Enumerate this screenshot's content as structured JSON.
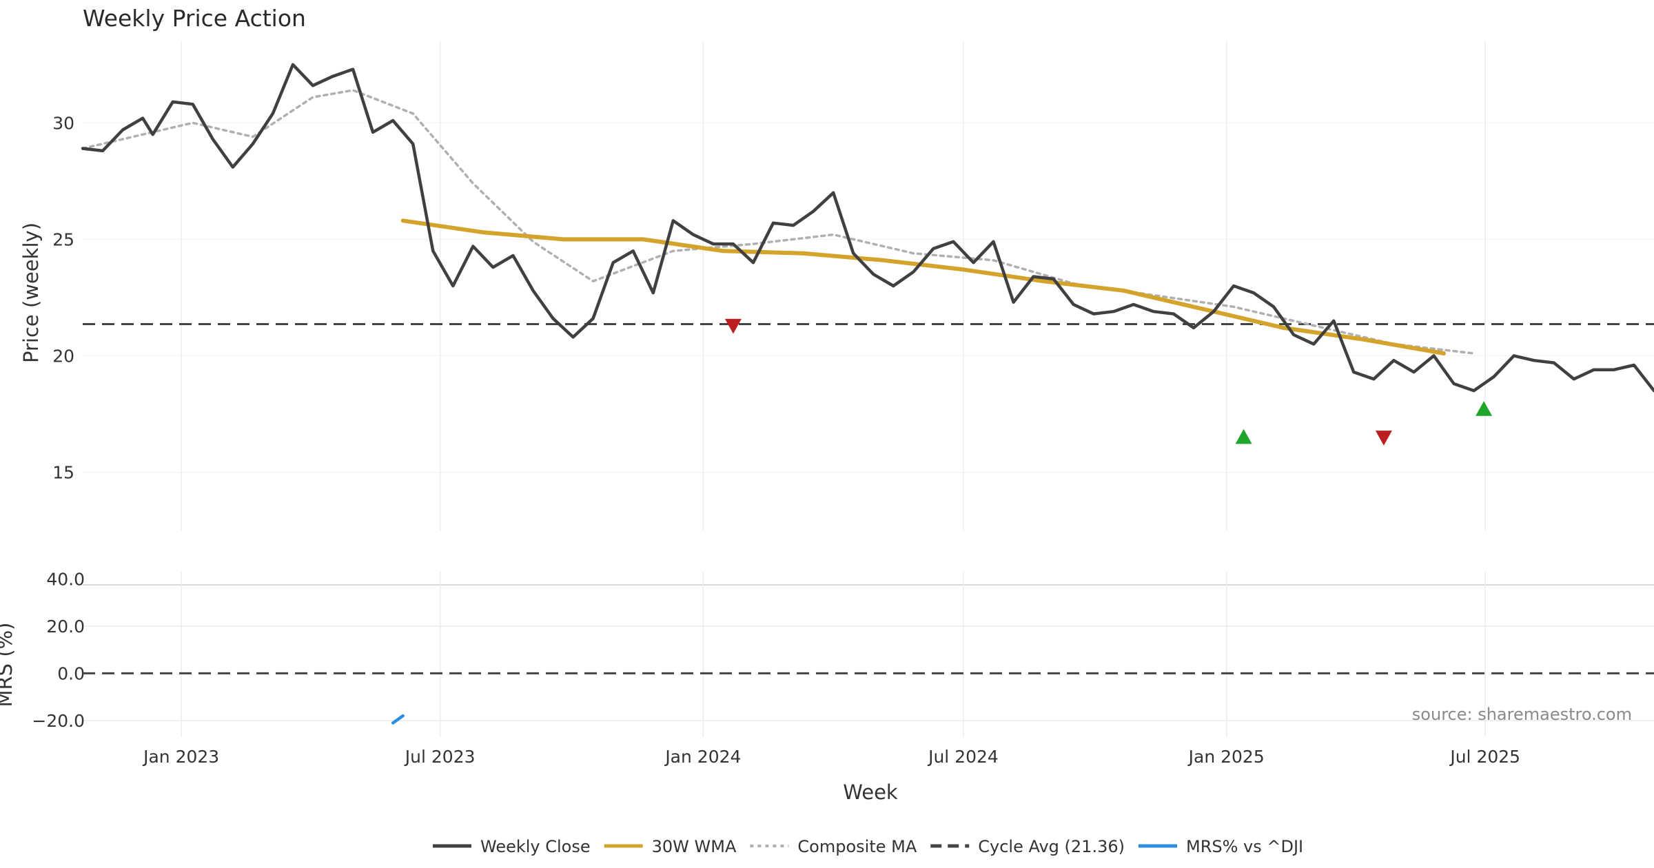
{
  "chart_data": {
    "type": "line",
    "title": "Weekly Price Action",
    "source": "source: sharemaestro.com",
    "x_axis": {
      "label": "Week",
      "range": [
        "2022-10-24",
        "2025-10-27"
      ],
      "ticks": [
        {
          "date": "2023-01-01",
          "label": "Jan 2023"
        },
        {
          "date": "2023-07-01",
          "label": "Jul 2023"
        },
        {
          "date": "2024-01-01",
          "label": "Jan 2024"
        },
        {
          "date": "2024-07-01",
          "label": "Jul 2024"
        },
        {
          "date": "2025-01-01",
          "label": "Jan 2025"
        },
        {
          "date": "2025-07-01",
          "label": "Jul 2025"
        }
      ]
    },
    "price_panel": {
      "ylabel": "Price (weekly)",
      "ylim": [
        12.5,
        33.5
      ],
      "yticks": [
        15,
        20,
        25,
        30
      ],
      "series": [
        {
          "name": "Weekly Close",
          "color": "#404040",
          "style": "solid",
          "points": [
            [
              "2022-10-24",
              28.9
            ],
            [
              "2022-11-07",
              28.8
            ],
            [
              "2022-11-21",
              29.7
            ],
            [
              "2022-12-05",
              30.2
            ],
            [
              "2022-12-12",
              29.5
            ],
            [
              "2022-12-26",
              30.9
            ],
            [
              "2023-01-09",
              30.8
            ],
            [
              "2023-01-23",
              29.3
            ],
            [
              "2023-02-06",
              28.1
            ],
            [
              "2023-02-20",
              29.1
            ],
            [
              "2023-03-06",
              30.4
            ],
            [
              "2023-03-20",
              32.5
            ],
            [
              "2023-04-03",
              31.6
            ],
            [
              "2023-04-17",
              32.0
            ],
            [
              "2023-05-01",
              32.3
            ],
            [
              "2023-05-15",
              29.6
            ],
            [
              "2023-05-29",
              30.1
            ],
            [
              "2023-06-12",
              29.1
            ],
            [
              "2023-06-26",
              24.5
            ],
            [
              "2023-07-10",
              23.0
            ],
            [
              "2023-07-24",
              24.7
            ],
            [
              "2023-08-07",
              23.8
            ],
            [
              "2023-08-21",
              24.3
            ],
            [
              "2023-09-04",
              22.8
            ],
            [
              "2023-09-18",
              21.6
            ],
            [
              "2023-10-02",
              20.8
            ],
            [
              "2023-10-16",
              21.6
            ],
            [
              "2023-10-30",
              24.0
            ],
            [
              "2023-11-13",
              24.5
            ],
            [
              "2023-11-27",
              22.7
            ],
            [
              "2023-12-11",
              25.8
            ],
            [
              "2023-12-25",
              25.2
            ],
            [
              "2024-01-08",
              24.8
            ],
            [
              "2024-01-22",
              24.8
            ],
            [
              "2024-02-05",
              24.0
            ],
            [
              "2024-02-19",
              25.7
            ],
            [
              "2024-03-04",
              25.6
            ],
            [
              "2024-03-18",
              26.2
            ],
            [
              "2024-04-01",
              27.0
            ],
            [
              "2024-04-15",
              24.4
            ],
            [
              "2024-04-29",
              23.5
            ],
            [
              "2024-05-13",
              23.0
            ],
            [
              "2024-05-27",
              23.6
            ],
            [
              "2024-06-10",
              24.6
            ],
            [
              "2024-06-24",
              24.9
            ],
            [
              "2024-07-08",
              24.0
            ],
            [
              "2024-07-22",
              24.9
            ],
            [
              "2024-08-05",
              22.3
            ],
            [
              "2024-08-19",
              23.4
            ],
            [
              "2024-09-02",
              23.3
            ],
            [
              "2024-09-16",
              22.2
            ],
            [
              "2024-09-30",
              21.8
            ],
            [
              "2024-10-14",
              21.9
            ],
            [
              "2024-10-28",
              22.2
            ],
            [
              "2024-11-11",
              21.9
            ],
            [
              "2024-11-25",
              21.8
            ],
            [
              "2024-12-09",
              21.2
            ],
            [
              "2024-12-23",
              21.9
            ],
            [
              "2025-01-06",
              23.0
            ],
            [
              "2025-01-20",
              22.7
            ],
            [
              "2025-02-03",
              22.1
            ],
            [
              "2025-02-17",
              20.9
            ],
            [
              "2025-03-03",
              20.5
            ],
            [
              "2025-03-17",
              21.5
            ],
            [
              "2025-03-31",
              19.3
            ],
            [
              "2025-04-14",
              19.0
            ],
            [
              "2025-04-28",
              19.8
            ],
            [
              "2025-05-12",
              19.3
            ],
            [
              "2025-05-26",
              20.0
            ],
            [
              "2025-06-09",
              18.8
            ],
            [
              "2025-06-23",
              18.5
            ],
            [
              "2025-07-07",
              19.1
            ],
            [
              "2025-07-21",
              20.0
            ],
            [
              "2025-08-04",
              19.8
            ],
            [
              "2025-08-18",
              19.7
            ],
            [
              "2025-09-01",
              19.0
            ],
            [
              "2025-09-15",
              19.4
            ],
            [
              "2025-09-29",
              19.4
            ],
            [
              "2025-10-13",
              19.6
            ],
            [
              "2025-10-27",
              18.5
            ]
          ]
        },
        {
          "name": "30W WMA",
          "color": "#d4a32b",
          "style": "solid",
          "points": [
            [
              "2023-06-05",
              25.8
            ],
            [
              "2023-07-31",
              25.3
            ],
            [
              "2023-09-25",
              25.0
            ],
            [
              "2023-11-20",
              25.0
            ],
            [
              "2024-01-15",
              24.5
            ],
            [
              "2024-03-11",
              24.4
            ],
            [
              "2024-05-06",
              24.1
            ],
            [
              "2024-07-01",
              23.7
            ],
            [
              "2024-08-26",
              23.2
            ],
            [
              "2024-10-21",
              22.8
            ],
            [
              "2024-12-16",
              22.0
            ],
            [
              "2025-02-10",
              21.2
            ],
            [
              "2025-04-07",
              20.7
            ],
            [
              "2025-06-02",
              20.1
            ]
          ]
        },
        {
          "name": "Composite MA",
          "color": "#b0b0b0",
          "style": "dotted",
          "points": [
            [
              "2022-10-24",
              28.9
            ],
            [
              "2023-01-09",
              30.0
            ],
            [
              "2023-02-20",
              29.4
            ],
            [
              "2023-04-03",
              31.1
            ],
            [
              "2023-05-01",
              31.4
            ],
            [
              "2023-06-12",
              30.4
            ],
            [
              "2023-07-24",
              27.4
            ],
            [
              "2023-09-04",
              24.9
            ],
            [
              "2023-10-16",
              23.2
            ],
            [
              "2023-12-11",
              24.5
            ],
            [
              "2024-02-05",
              24.8
            ],
            [
              "2024-04-01",
              25.2
            ],
            [
              "2024-05-27",
              24.4
            ],
            [
              "2024-07-22",
              24.1
            ],
            [
              "2024-09-16",
              23.1
            ],
            [
              "2024-11-11",
              22.6
            ],
            [
              "2025-01-06",
              22.1
            ],
            [
              "2025-03-03",
              21.3
            ],
            [
              "2025-04-28",
              20.5
            ],
            [
              "2025-06-23",
              20.1
            ]
          ]
        }
      ],
      "reference_line": {
        "name": "Cycle Avg (21.36)",
        "value": 21.36,
        "color": "#444444",
        "style": "dashed"
      },
      "markers": [
        {
          "date": "2024-01-22",
          "value": 21.3,
          "shape": "triangle-down",
          "color": "#bb1f1f"
        },
        {
          "date": "2025-01-13",
          "value": 16.5,
          "shape": "triangle-up",
          "color": "#1fa52b"
        },
        {
          "date": "2025-04-21",
          "value": 16.5,
          "shape": "triangle-down",
          "color": "#bb1f1f"
        },
        {
          "date": "2025-06-30",
          "value": 17.7,
          "shape": "triangle-up",
          "color": "#1fa52b"
        }
      ]
    },
    "mrs_panel": {
      "ylabel": "MRS (%)",
      "ylim": [
        -27,
        43
      ],
      "yticks": [
        {
          "value": 40,
          "label": "40.0"
        },
        {
          "value": 20,
          "label": "20.0"
        },
        {
          "value": 0,
          "label": "0.0"
        },
        {
          "value": -20,
          "label": "−20.0"
        }
      ],
      "zero_line": {
        "value": 0,
        "color": "#444444",
        "style": "dashed"
      },
      "series": [
        {
          "name": "MRS% vs ^DJI",
          "color": "#2e8fe0",
          "style": "solid",
          "points": [
            [
              "2023-05-29",
              -21.0
            ],
            [
              "2023-06-05",
              -18.0
            ]
          ]
        }
      ]
    },
    "legend": {
      "placement": "bottom-center",
      "entries": [
        {
          "label": "Weekly Close",
          "color": "#404040",
          "style": "solid"
        },
        {
          "label": "30W WMA",
          "color": "#d4a32b",
          "style": "solid"
        },
        {
          "label": "Composite MA",
          "color": "#b0b0b0",
          "style": "dotted"
        },
        {
          "label": "Cycle Avg (21.36)",
          "color": "#444444",
          "style": "dashed"
        },
        {
          "label": "MRS% vs ^DJI",
          "color": "#2e8fe0",
          "style": "solid"
        }
      ]
    }
  }
}
